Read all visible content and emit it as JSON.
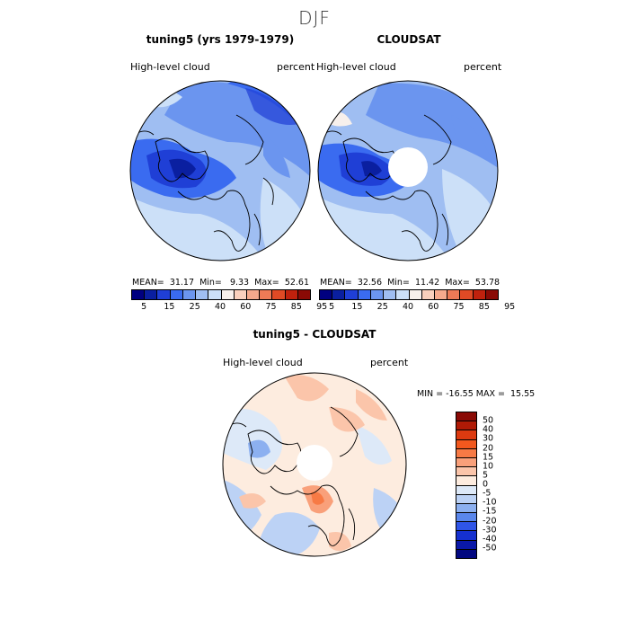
{
  "figure": {
    "season": "DJF"
  },
  "panels": [
    {
      "title": "tuning5 (yrs 1979-1979)",
      "variable": "High-level cloud",
      "units": "percent",
      "mean_label": "MEAN=",
      "mean": "31.17",
      "min_label": "Min=",
      "min": "9.33",
      "max_label": "Max=",
      "max": "52.61"
    },
    {
      "title": "CLOUDSAT",
      "variable": "High-level cloud",
      "units": "percent",
      "mean_label": "MEAN=",
      "mean": "32.56",
      "min_label": "Min=",
      "min": "11.42",
      "max_label": "Max=",
      "max": "53.78"
    }
  ],
  "diff_panel": {
    "title": "tuning5 - CLOUDSAT",
    "variable": "High-level cloud",
    "units": "percent",
    "min_label": "MIN =",
    "min": "-16.55",
    "max_label": "MAX =",
    "max": "15.55"
  },
  "colorbar_top": {
    "colors": [
      "#000080",
      "#0a1fa0",
      "#1f3fd6",
      "#3a6bf0",
      "#6b95ef",
      "#9fbef2",
      "#cce0f8",
      "#f7f0ec",
      "#f9d0bd",
      "#f5a98c",
      "#ed7a56",
      "#e04a25",
      "#c0210d",
      "#8a0a05"
    ],
    "tick_labels": [
      "5",
      "15",
      "25",
      "40",
      "60",
      "75",
      "85",
      "95"
    ]
  },
  "colorbar_diff": {
    "colors_top_to_bottom": [
      "#8a0a05",
      "#b01a06",
      "#dd3a10",
      "#f2581e",
      "#f77a45",
      "#f9a07a",
      "#fbc5aa",
      "#fdecdf",
      "#dde9f8",
      "#bcd2f5",
      "#8cb0f0",
      "#5a87ec",
      "#2f55e8",
      "#1530d0",
      "#0a18a8",
      "#020880"
    ],
    "tick_labels": [
      "50",
      "40",
      "30",
      "20",
      "15",
      "10",
      "5",
      "0",
      "-5",
      "-10",
      "-15",
      "-20",
      "-30",
      "-40",
      "-50"
    ]
  }
}
